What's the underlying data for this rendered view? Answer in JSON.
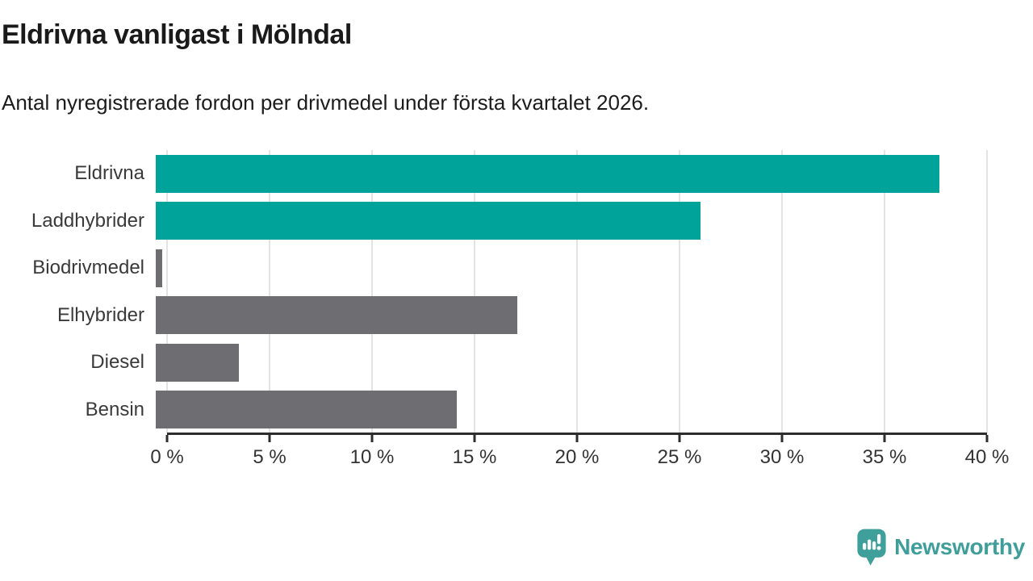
{
  "title": "Eldrivna vanligast i Mölndal",
  "subtitle": "Antal nyregistrerade fordon per drivmedel under första kvartalet 2026.",
  "chart_data": {
    "type": "bar",
    "orientation": "horizontal",
    "title": "Eldrivna vanligast i Mölndal",
    "subtitle": "Antal nyregistrerade fordon per drivmedel under första kvartalet 2026.",
    "categories": [
      "Eldrivna",
      "Laddhybrider",
      "Biodrivmedel",
      "Elhybrider",
      "Diesel",
      "Bensin"
    ],
    "values": [
      37.7,
      26.2,
      0.3,
      17.4,
      4.0,
      14.5
    ],
    "unit": "%",
    "xlim": [
      0,
      40
    ],
    "tick_step": 5,
    "x_ticks": [
      "0 %",
      "5 %",
      "10 %",
      "15 %",
      "20 %",
      "25 %",
      "30 %",
      "35 %",
      "40 %"
    ],
    "grid": true,
    "legend": "none",
    "bar_colors": [
      "#00a39a",
      "#00a39a",
      "#6d6d72",
      "#6d6d72",
      "#6d6d72",
      "#6d6d72"
    ]
  },
  "colors": {
    "highlight": "#00a39a",
    "neutral": "#6d6d72",
    "gridline": "#e3e3e3",
    "axis": "#2d2d2d",
    "text": "#1a1a1a",
    "logo_teal": "#3f9e99"
  },
  "footer": {
    "brand": "Newsworthy",
    "logo_icon": "newsworthy-chart-bubble-icon"
  }
}
